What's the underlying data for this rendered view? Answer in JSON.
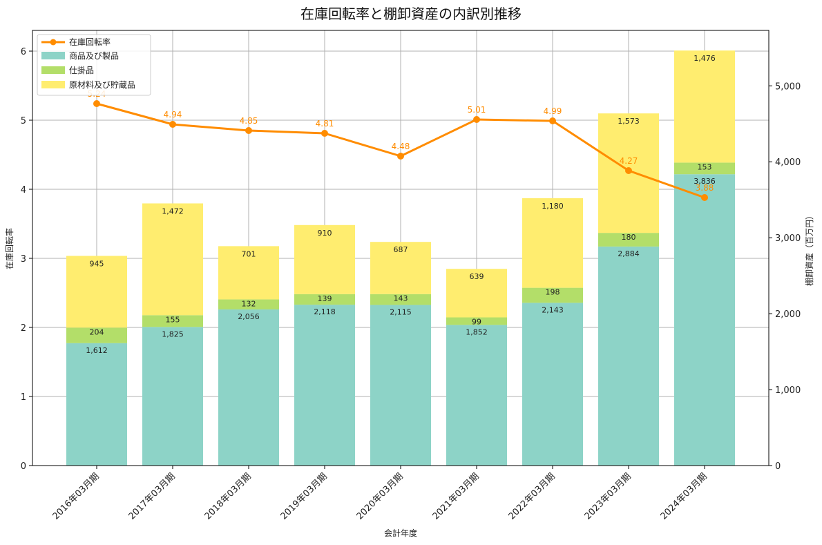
{
  "chart_data": {
    "type": "bar",
    "title": "在庫回転率と棚卸資産の内訳別推移",
    "xlabel": "会計年度",
    "ylabel_left": "在庫回転率",
    "ylabel_right": "棚卸資産（百万円）",
    "categories": [
      "2016年03月期",
      "2017年03月期",
      "2018年03月期",
      "2019年03月期",
      "2020年03月期",
      "2021年03月期",
      "2022年03月期",
      "2023年03月期",
      "2024年03月期"
    ],
    "ylim_left": [
      0,
      6.3
    ],
    "ylim_right": [
      0,
      5730
    ],
    "left_ticks": [
      "0",
      "1",
      "2",
      "3",
      "4",
      "5",
      "6"
    ],
    "right_ticks": [
      "0",
      "1,000",
      "2,000",
      "3,000",
      "4,000",
      "5,000"
    ],
    "grid": true,
    "legend_position": "top-left",
    "stack_series": [
      {
        "name": "商品及び製品",
        "color": "#8dd3c7",
        "values": [
          1612,
          1825,
          2056,
          2118,
          2115,
          1852,
          2143,
          2884,
          3836
        ],
        "labels": [
          "1,612",
          "1,825",
          "2,056",
          "2,118",
          "2,115",
          "1,852",
          "2,143",
          "2,884",
          "3,836"
        ]
      },
      {
        "name": "仕掛品",
        "color": "#b3de69",
        "values": [
          204,
          155,
          132,
          139,
          143,
          99,
          198,
          180,
          153
        ],
        "labels": [
          "204",
          "155",
          "132",
          "139",
          "143",
          "99",
          "198",
          "180",
          "153"
        ]
      },
      {
        "name": "原材料及び貯蔵品",
        "color": "#ffed6f",
        "values": [
          945,
          1472,
          701,
          910,
          687,
          639,
          1180,
          1573,
          1476
        ],
        "labels": [
          "945",
          "1,472",
          "701",
          "910",
          "687",
          "639",
          "1,180",
          "1,573",
          "1,476"
        ]
      }
    ],
    "line_series": {
      "name": "在庫回転率",
      "color": "#ff8c00",
      "values": [
        5.24,
        4.94,
        4.85,
        4.81,
        4.48,
        5.01,
        4.99,
        4.27,
        3.88
      ],
      "labels": [
        "5.24",
        "4.94",
        "4.85",
        "4.81",
        "4.48",
        "5.01",
        "4.99",
        "4.27",
        "3.88"
      ]
    }
  }
}
